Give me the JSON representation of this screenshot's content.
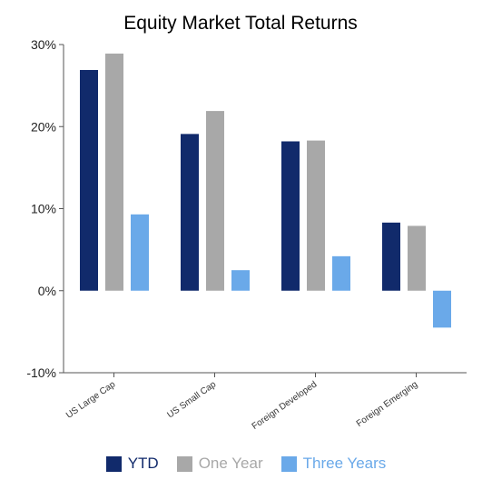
{
  "chart_data": {
    "type": "bar",
    "title": "Equity Market Total Returns",
    "categories": [
      "US Large Cap",
      "US Small Cap",
      "Foreign Developed",
      "Foreign Emerging"
    ],
    "series": [
      {
        "name": "YTD",
        "color": "#112a6b",
        "values": [
          26.9,
          19.1,
          18.2,
          8.3
        ]
      },
      {
        "name": "One Year",
        "color": "#a8a8a8",
        "values": [
          28.9,
          21.9,
          18.3,
          7.9
        ]
      },
      {
        "name": "Three Years",
        "color": "#6aa9e9",
        "values": [
          9.3,
          2.5,
          4.2,
          -4.5
        ]
      }
    ],
    "y_ticks": [
      "30%",
      "20%",
      "10%",
      "0%",
      "-10%"
    ],
    "y_tick_values": [
      30,
      20,
      10,
      0,
      -10
    ],
    "ylim": [
      -10,
      30
    ],
    "xlabel": "",
    "ylabel": "",
    "grid": false,
    "legend": "bottom"
  }
}
